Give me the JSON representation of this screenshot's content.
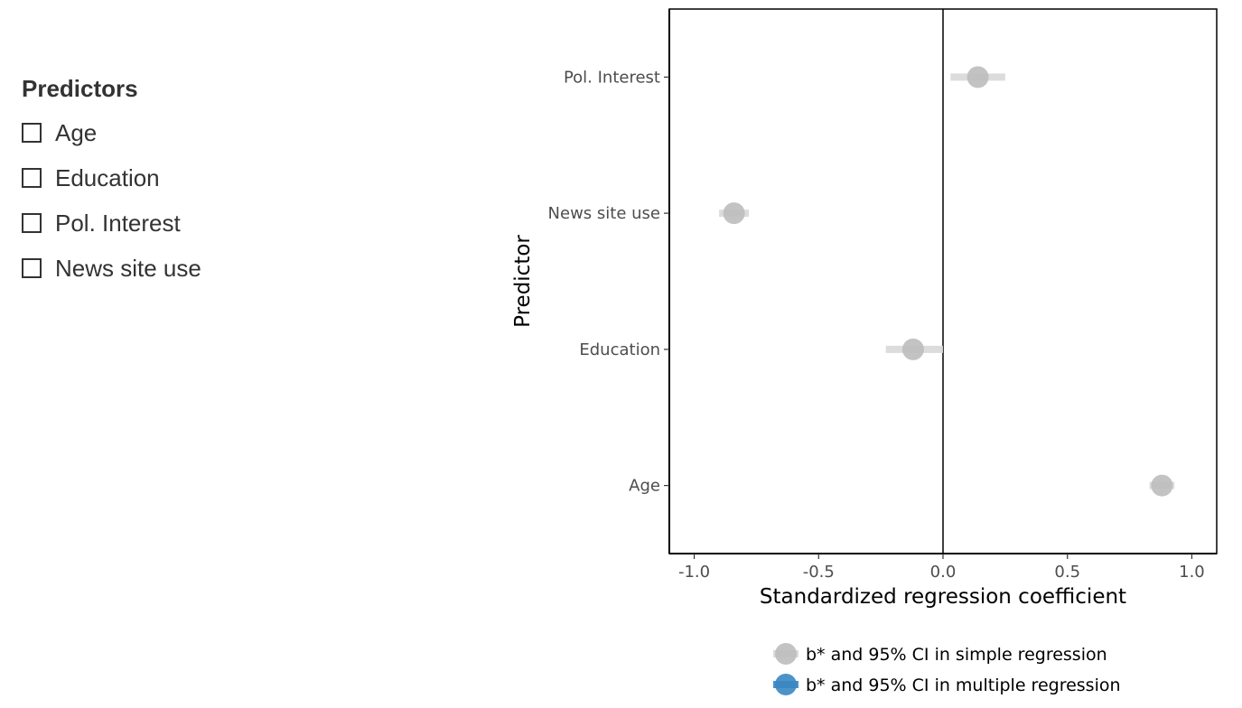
{
  "sidebar": {
    "title": "Predictors",
    "items": [
      {
        "label": "Age",
        "checked": false
      },
      {
        "label": "Education",
        "checked": false
      },
      {
        "label": "Pol. Interest",
        "checked": false
      },
      {
        "label": "News site use",
        "checked": false
      }
    ]
  },
  "chart_data": {
    "type": "scatter",
    "xlabel": "Standardized regression coefficient",
    "ylabel": "Predictor",
    "xlim": [
      -1.1,
      1.1
    ],
    "xticks": [
      -1.0,
      -0.5,
      0.0,
      0.5,
      1.0
    ],
    "xtick_labels": [
      "-1.0",
      "-0.5",
      "0.0",
      "0.5",
      "1.0"
    ],
    "categories": [
      "Age",
      "Education",
      "News site use",
      "Pol. Interest"
    ],
    "reference_line_x": 0,
    "grid": false,
    "legend_position": "bottom",
    "series": [
      {
        "name": "b* and 95% CI in simple regression",
        "color": "#bdbdbd",
        "ci_color": "#d9d9d9",
        "points": [
          {
            "category": "Age",
            "estimate": 0.88,
            "ci_low": 0.83,
            "ci_high": 0.93
          },
          {
            "category": "Education",
            "estimate": -0.12,
            "ci_low": -0.23,
            "ci_high": 0.0
          },
          {
            "category": "News site use",
            "estimate": -0.84,
            "ci_low": -0.9,
            "ci_high": -0.78
          },
          {
            "category": "Pol. Interest",
            "estimate": 0.14,
            "ci_low": 0.03,
            "ci_high": 0.25
          }
        ]
      },
      {
        "name": "b* and 95% CI in multiple regression",
        "color": "#3a87c2",
        "ci_color": "#3a87c2",
        "points": []
      }
    ]
  }
}
